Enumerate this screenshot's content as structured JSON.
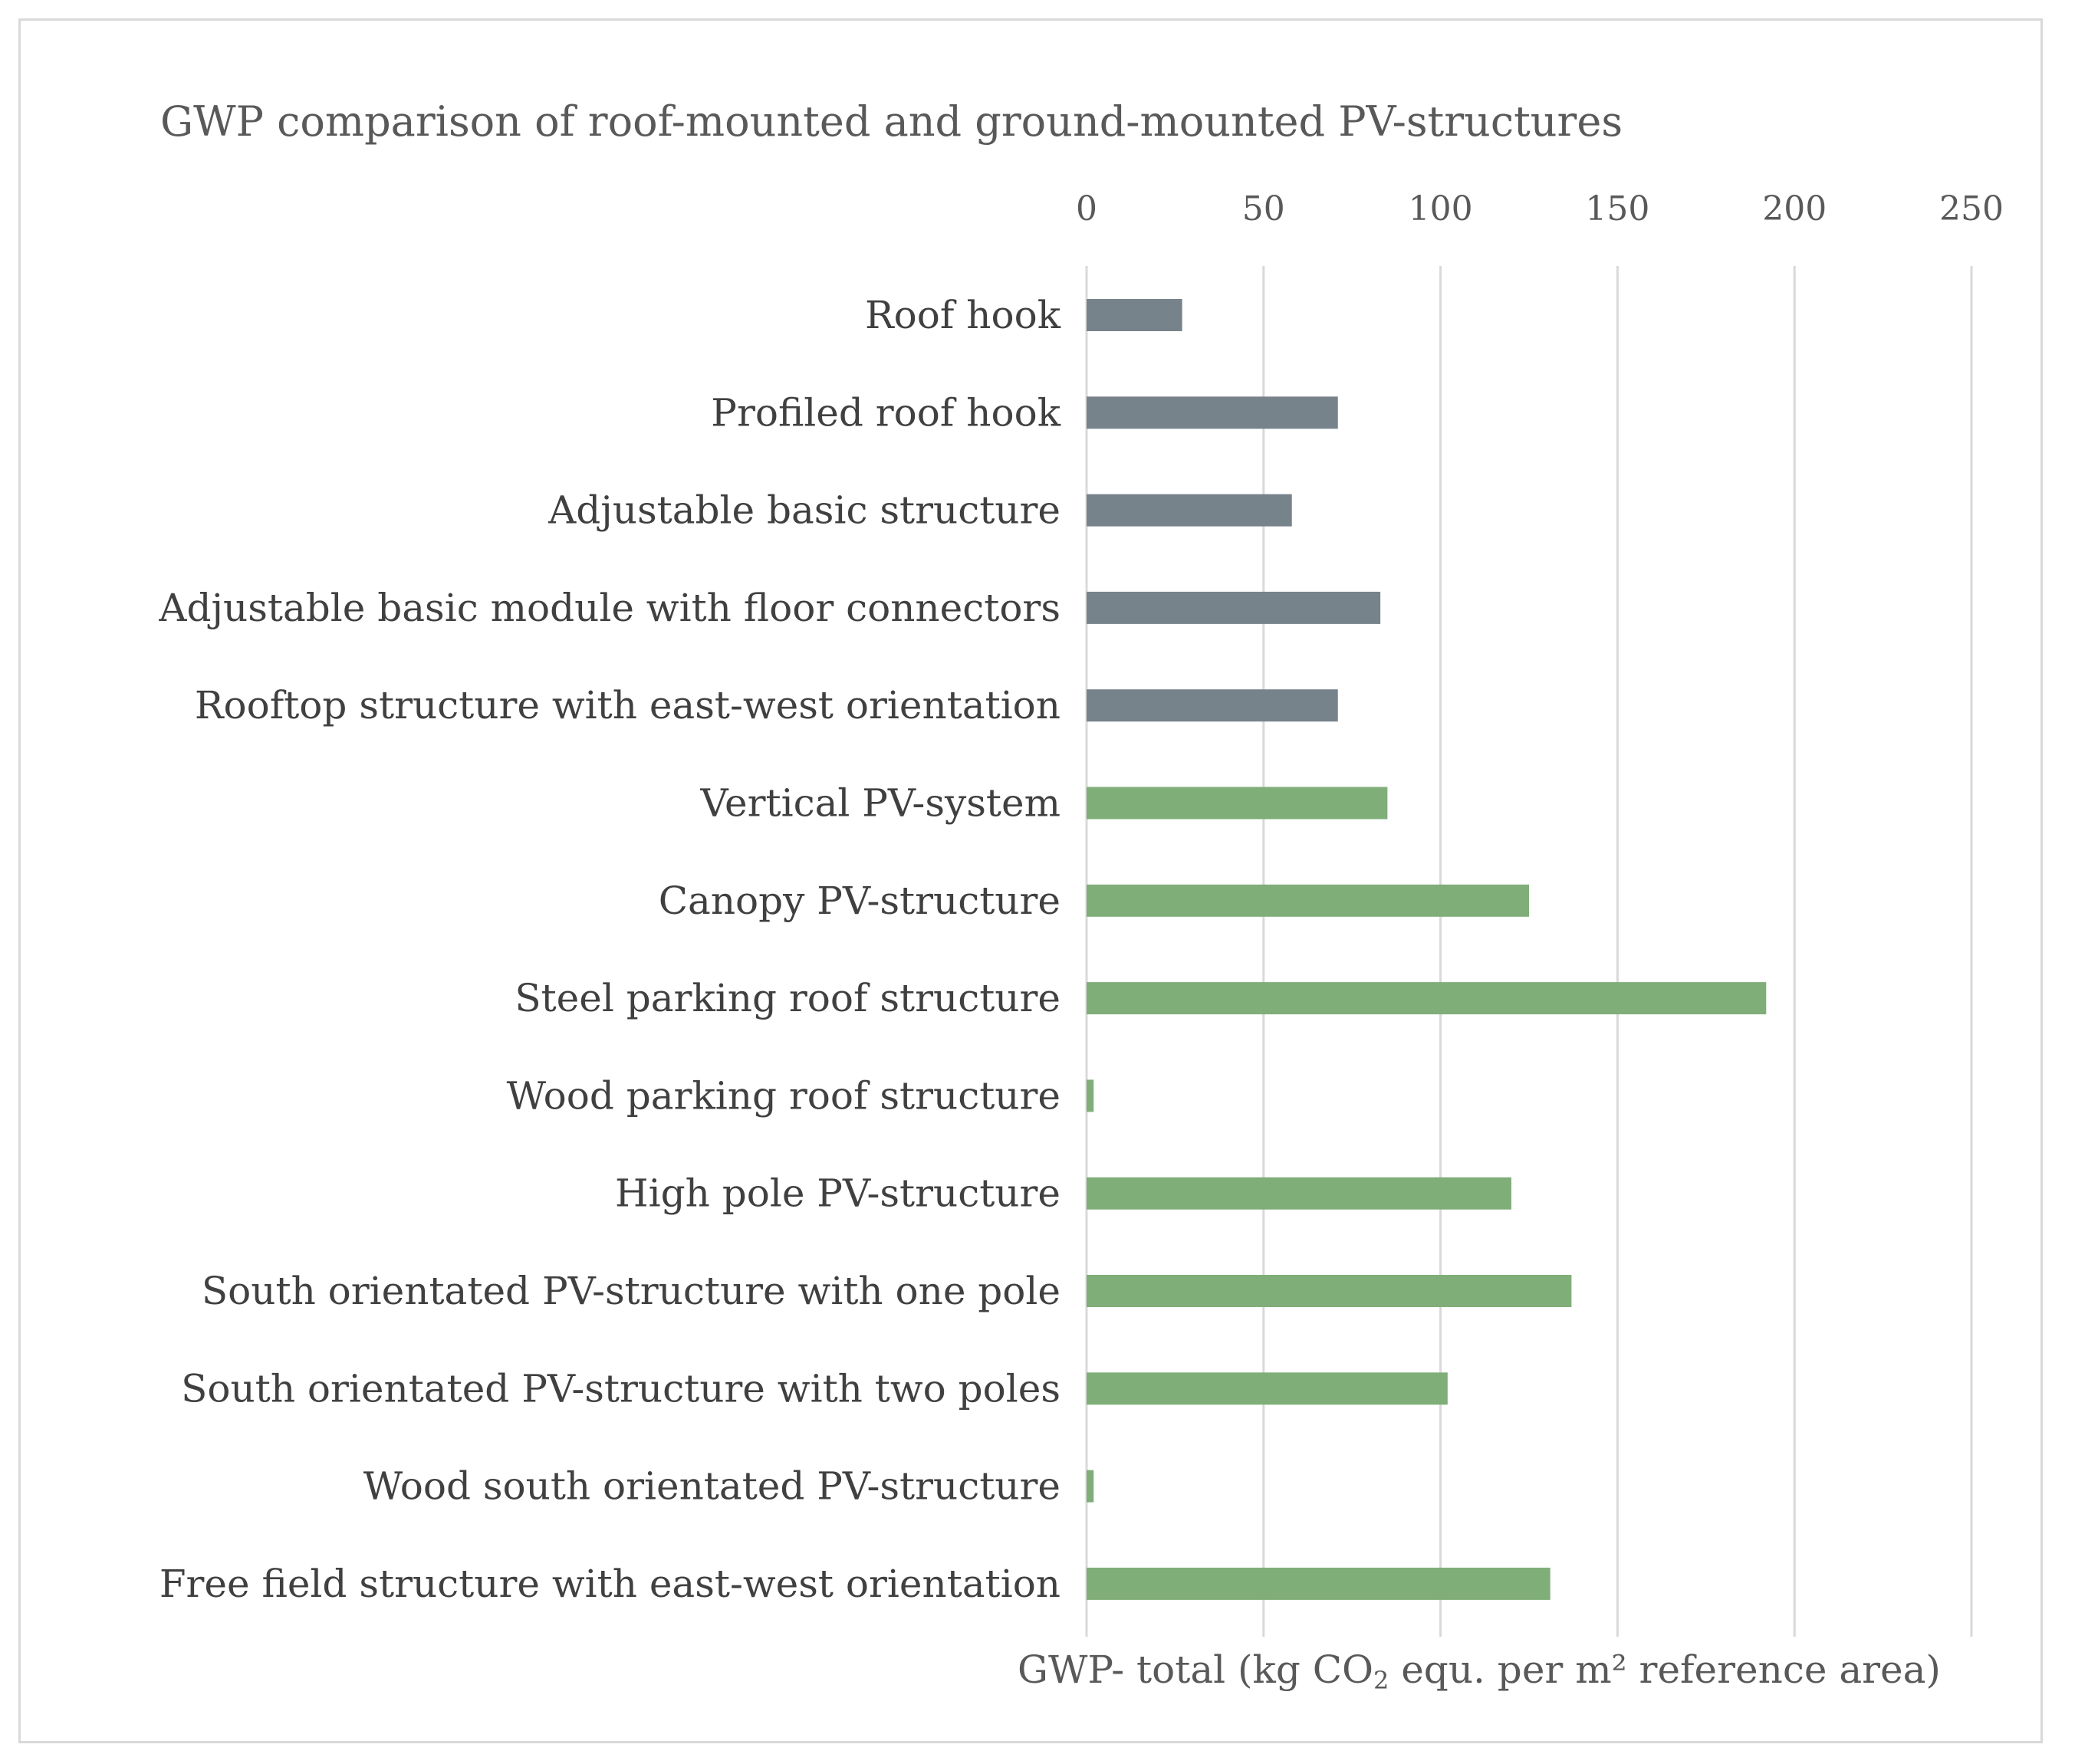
{
  "chart_data": {
    "type": "bar",
    "orientation": "horizontal",
    "title": "GWP comparison of roof-mounted and ground-mounted PV-structures",
    "xlabel_parts": {
      "before": "GWP- total (kg CO",
      "subscript": "2",
      "after": " equ. per m² reference area)"
    },
    "xlim": [
      0,
      250
    ],
    "xticks": [
      0,
      50,
      100,
      150,
      200,
      250
    ],
    "x_axis_position": "top",
    "grid": true,
    "categories": [
      "Roof hook",
      "Profiled roof hook",
      "Adjustable basic structure",
      "Adjustable basic module with floor connectors",
      "Rooftop structure with east-west orientation",
      "Vertical PV-system",
      "Canopy PV-structure",
      "Steel parking roof structure",
      "Wood parking roof structure",
      "High pole PV-structure",
      "South orientated PV-structure with one pole",
      "South orientated PV-structure with two poles",
      "Wood south orientated PV-structure",
      "Free field structure with east-west orientation"
    ],
    "values": [
      27,
      71,
      58,
      83,
      71,
      85,
      125,
      192,
      2,
      120,
      137,
      102,
      2,
      131
    ],
    "groups": [
      "roof",
      "roof",
      "roof",
      "roof",
      "roof",
      "ground",
      "ground",
      "ground",
      "ground",
      "ground",
      "ground",
      "ground",
      "ground",
      "ground"
    ],
    "group_colors": {
      "roof": "#77838b",
      "ground": "#7fae78"
    }
  }
}
